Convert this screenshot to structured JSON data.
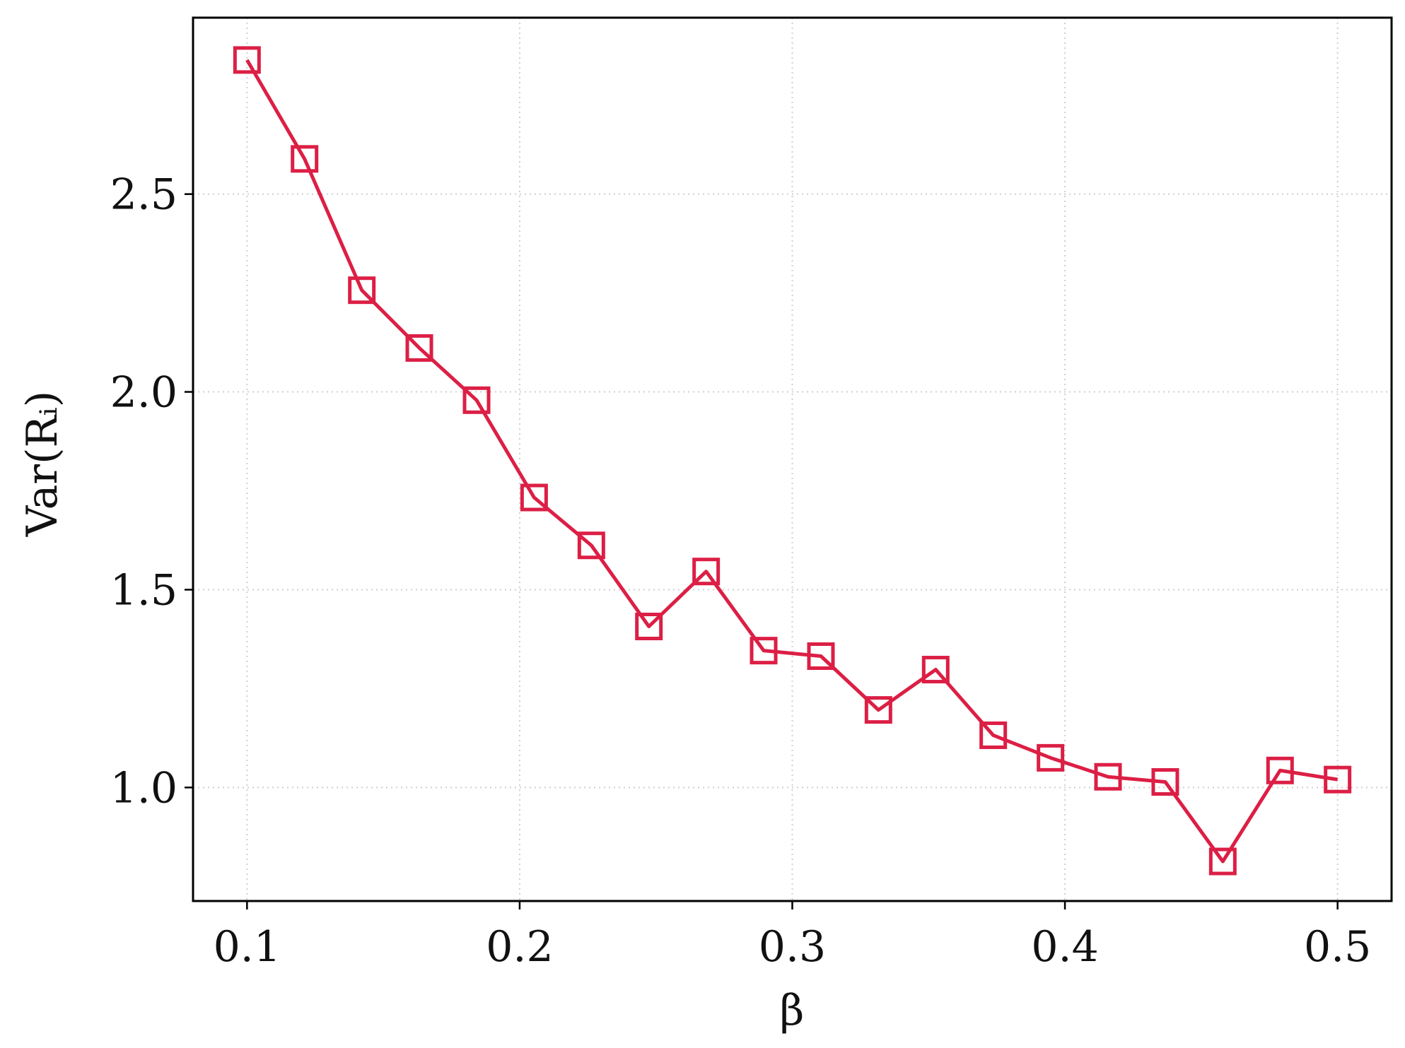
{
  "chart_data": {
    "type": "line",
    "xlabel": "β",
    "ylabel": "Var(Rᵢ)",
    "x": [
      0.1,
      0.1211,
      0.1421,
      0.1632,
      0.1842,
      0.2053,
      0.2263,
      0.2474,
      0.2684,
      0.2895,
      0.3105,
      0.3316,
      0.3526,
      0.3737,
      0.3947,
      0.4158,
      0.4368,
      0.4579,
      0.4789,
      0.5
    ],
    "series": [
      {
        "color": "#dc1f45",
        "marker": "square",
        "values": [
          2.839,
          2.589,
          2.257,
          2.111,
          1.979,
          1.733,
          1.612,
          1.407,
          1.546,
          1.346,
          1.332,
          1.196,
          1.298,
          1.132,
          1.075,
          1.027,
          1.014,
          0.813,
          1.043,
          1.02
        ]
      }
    ],
    "xlim": [
      0.0802,
      0.5198
    ],
    "ylim": [
      0.713,
      2.946
    ],
    "xticks": [
      0.1,
      0.2,
      0.3,
      0.4,
      0.5
    ],
    "yticks": [
      {
        "value": 1.0,
        "label": "1.0"
      },
      1.5,
      {
        "value": 2.0,
        "label": "2.0"
      },
      2.5
    ],
    "grid": true
  }
}
